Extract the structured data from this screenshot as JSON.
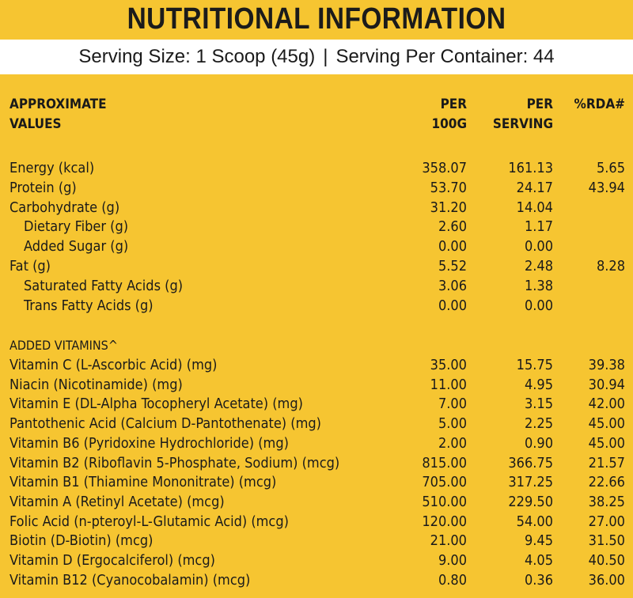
{
  "title": "NUTRITIONAL INFORMATION",
  "serving": {
    "size": "Serving Size: 1 Scoop (45g)",
    "separator": "|",
    "per_container": "Serving Per Container: 44"
  },
  "headers": {
    "label_line1": "APPROXIMATE",
    "label_line2": "VALUES",
    "per100_line1": "PER",
    "per100_line2": "100G",
    "serving_line1": "PER",
    "serving_line2": "SERVING",
    "rda": "%RDA#"
  },
  "rows": [
    {
      "label": "Energy (kcal)",
      "per100": "358.07",
      "serving": "161.13",
      "rda": "5.65"
    },
    {
      "label": "Protein (g)",
      "per100": "53.70",
      "serving": "24.17",
      "rda": "43.94"
    },
    {
      "label": "Carbohydrate (g)",
      "per100": "31.20",
      "serving": "14.04",
      "rda": ""
    },
    {
      "label": "Dietary Fiber (g)",
      "per100": "2.60",
      "serving": "1.17",
      "rda": ""
    },
    {
      "label": "Added Sugar (g)",
      "per100": "0.00",
      "serving": "0.00",
      "rda": ""
    },
    {
      "label": "Fat (g)",
      "per100": "5.52",
      "serving": "2.48",
      "rda": "8.28"
    },
    {
      "label": "Saturated Fatty Acids (g)",
      "per100": "3.06",
      "serving": "1.38",
      "rda": ""
    },
    {
      "label": "Trans Fatty Acids (g)",
      "per100": "0.00",
      "serving": "0.00",
      "rda": ""
    }
  ],
  "vitamins_heading": "ADDED VITAMINS^",
  "vitamins": [
    {
      "label": "Vitamin C (L-Ascorbic Acid) (mg)",
      "per100": "35.00",
      "serving": "15.75",
      "rda": "39.38"
    },
    {
      "label": "Niacin (Nicotinamide) (mg)",
      "per100": "11.00",
      "serving": "4.95",
      "rda": "30.94"
    },
    {
      "label": "Vitamin E (DL-Alpha Tocopheryl Acetate) (mg)",
      "per100": "7.00",
      "serving": "3.15",
      "rda": "42.00"
    },
    {
      "label": "Pantothenic Acid (Calcium D-Pantothenate) (mg)",
      "per100": "5.00",
      "serving": "2.25",
      "rda": "45.00"
    },
    {
      "label": "Vitamin B6 (Pyridoxine Hydrochloride) (mg)",
      "per100": "2.00",
      "serving": "0.90",
      "rda": "45.00"
    },
    {
      "label": "Vitamin B2 (Riboflavin 5-Phosphate, Sodium) (mcg)",
      "per100": "815.00",
      "serving": "366.75",
      "rda": "21.57"
    },
    {
      "label": "Vitamin B1 (Thiamine Mononitrate) (mcg)",
      "per100": "705.00",
      "serving": "317.25",
      "rda": "22.66"
    },
    {
      "label": "Vitamin A (Retinyl Acetate) (mcg)",
      "per100": "510.00",
      "serving": "229.50",
      "rda": "38.25"
    },
    {
      "label": "Folic Acid (n-pteroyl-L-Glutamic Acid) (mcg)",
      "per100": "120.00",
      "serving": "54.00",
      "rda": "27.00"
    },
    {
      "label": "Biotin (D-Biotin) (mcg)",
      "per100": "21.00",
      "serving": "9.45",
      "rda": "31.50"
    },
    {
      "label": "Vitamin D (Ergocalciferol) (mcg)",
      "per100": "9.00",
      "serving": "4.05",
      "rda": "40.50"
    },
    {
      "label": "Vitamin B12 (Cyanocobalamin) (mcg)",
      "per100": "0.80",
      "serving": "0.36",
      "rda": "36.00"
    }
  ]
}
